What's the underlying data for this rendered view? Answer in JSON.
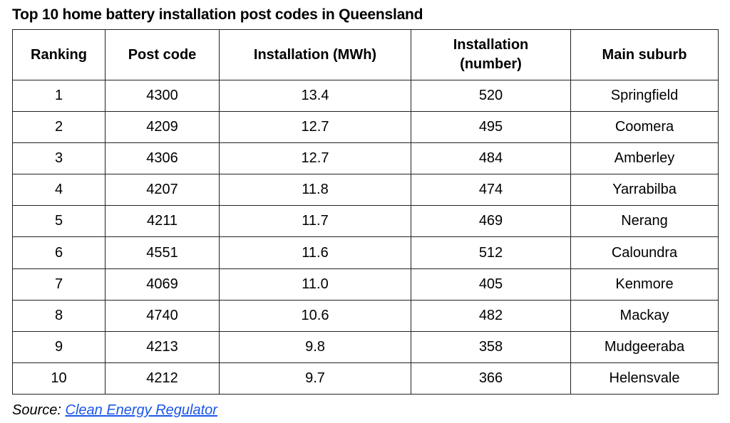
{
  "title": "Top 10 home battery installation post codes in Queensland",
  "headers": [
    "Ranking",
    "Post code",
    "Installation (MWh)",
    "Installation (number)",
    "Main suburb"
  ],
  "rows": [
    [
      "1",
      "4300",
      "13.4",
      "520",
      "Springfield"
    ],
    [
      "2",
      "4209",
      "12.7",
      "495",
      "Coomera"
    ],
    [
      "3",
      "4306",
      "12.7",
      "484",
      "Amberley"
    ],
    [
      "4",
      "4207",
      "11.8",
      "474",
      "Yarrabilba"
    ],
    [
      "5",
      "4211",
      "11.7",
      "469",
      "Nerang"
    ],
    [
      "6",
      "4551",
      "11.6",
      "512",
      "Caloundra"
    ],
    [
      "7",
      "4069",
      "11.0",
      "405",
      "Kenmore"
    ],
    [
      "8",
      "4740",
      "10.6",
      "482",
      "Mackay"
    ],
    [
      "9",
      "4213",
      "9.8",
      "358",
      "Mudgeeraba"
    ],
    [
      "10",
      "4212",
      "9.7",
      "366",
      "Helensvale"
    ]
  ],
  "source": {
    "label": "Source:",
    "link_text": "Clean Energy Regulator",
    "link_color": "#1a56e8"
  }
}
